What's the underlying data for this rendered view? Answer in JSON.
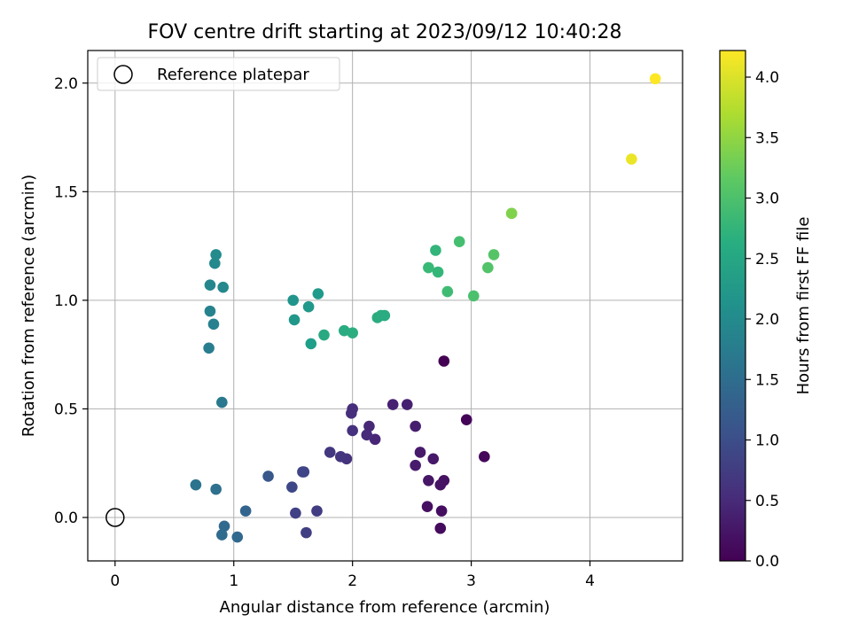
{
  "chart_data": {
    "type": "scatter",
    "title": "FOV centre drift starting at 2023/09/12 10:40:28",
    "xlabel": "Angular distance from reference (arcmin)",
    "ylabel": "Rotation from reference (arcmin)",
    "xlim": [
      -0.23,
      4.78
    ],
    "ylim": [
      -0.2,
      2.15
    ],
    "xticks": [
      0,
      1,
      2,
      3,
      4
    ],
    "xtick_labels": [
      "0",
      "1",
      "2",
      "3",
      "4"
    ],
    "yticks": [
      0.0,
      0.5,
      1.0,
      1.5,
      2.0
    ],
    "ytick_labels": [
      "0.0",
      "0.5",
      "1.0",
      "1.5",
      "2.0"
    ],
    "grid": true,
    "legend": {
      "position": "upper-left",
      "entries": [
        "Reference platepar"
      ]
    },
    "reference_point": {
      "x": 0.0,
      "y": 0.0
    },
    "colorbar": {
      "label": "Hours from first FF file",
      "range": [
        0.0,
        4.22
      ],
      "ticks": [
        0.0,
        0.5,
        1.0,
        1.5,
        2.0,
        2.5,
        3.0,
        3.5,
        4.0
      ],
      "tick_labels": [
        "0.0",
        "0.5",
        "1.0",
        "1.5",
        "2.0",
        "2.5",
        "3.0",
        "3.5",
        "4.0"
      ],
      "colormap": "viridis"
    },
    "points": [
      {
        "x": 2.77,
        "y": 0.72,
        "t": 0.0
      },
      {
        "x": 2.96,
        "y": 0.45,
        "t": 0.05
      },
      {
        "x": 3.11,
        "y": 0.28,
        "t": 0.08
      },
      {
        "x": 2.74,
        "y": -0.05,
        "t": 0.12
      },
      {
        "x": 2.75,
        "y": 0.03,
        "t": 0.15
      },
      {
        "x": 2.63,
        "y": 0.05,
        "t": 0.18
      },
      {
        "x": 2.77,
        "y": 0.17,
        "t": 0.2
      },
      {
        "x": 2.74,
        "y": 0.15,
        "t": 0.22
      },
      {
        "x": 2.64,
        "y": 0.17,
        "t": 0.25
      },
      {
        "x": 2.68,
        "y": 0.27,
        "t": 0.28
      },
      {
        "x": 2.57,
        "y": 0.3,
        "t": 0.3
      },
      {
        "x": 2.53,
        "y": 0.24,
        "t": 0.32
      },
      {
        "x": 2.53,
        "y": 0.42,
        "t": 0.35
      },
      {
        "x": 2.46,
        "y": 0.52,
        "t": 0.38
      },
      {
        "x": 2.34,
        "y": 0.52,
        "t": 0.4
      },
      {
        "x": 2.19,
        "y": 0.36,
        "t": 0.45
      },
      {
        "x": 2.14,
        "y": 0.42,
        "t": 0.48
      },
      {
        "x": 2.12,
        "y": 0.38,
        "t": 0.5
      },
      {
        "x": 2.0,
        "y": 0.5,
        "t": 0.55
      },
      {
        "x": 1.99,
        "y": 0.48,
        "t": 0.58
      },
      {
        "x": 2.0,
        "y": 0.4,
        "t": 0.6
      },
      {
        "x": 1.95,
        "y": 0.27,
        "t": 0.62
      },
      {
        "x": 1.9,
        "y": 0.28,
        "t": 0.65
      },
      {
        "x": 1.81,
        "y": 0.3,
        "t": 0.68
      },
      {
        "x": 1.7,
        "y": 0.03,
        "t": 0.75
      },
      {
        "x": 1.61,
        "y": -0.07,
        "t": 0.78
      },
      {
        "x": 1.52,
        "y": 0.02,
        "t": 0.82
      },
      {
        "x": 1.59,
        "y": 0.21,
        "t": 0.85
      },
      {
        "x": 1.58,
        "y": 0.21,
        "t": 0.88
      },
      {
        "x": 1.49,
        "y": 0.14,
        "t": 0.92
      },
      {
        "x": 1.29,
        "y": 0.19,
        "t": 1.15
      },
      {
        "x": 1.1,
        "y": 0.03,
        "t": 1.35
      },
      {
        "x": 1.03,
        "y": -0.09,
        "t": 1.4
      },
      {
        "x": 0.92,
        "y": -0.04,
        "t": 1.45
      },
      {
        "x": 0.9,
        "y": -0.08,
        "t": 1.47
      },
      {
        "x": 0.85,
        "y": 0.13,
        "t": 1.55
      },
      {
        "x": 0.68,
        "y": 0.15,
        "t": 1.6
      },
      {
        "x": 0.9,
        "y": 0.53,
        "t": 1.7
      },
      {
        "x": 0.79,
        "y": 0.78,
        "t": 1.8
      },
      {
        "x": 0.83,
        "y": 0.89,
        "t": 1.85
      },
      {
        "x": 0.8,
        "y": 0.95,
        "t": 1.9
      },
      {
        "x": 0.8,
        "y": 1.07,
        "t": 1.95
      },
      {
        "x": 0.91,
        "y": 1.06,
        "t": 1.97
      },
      {
        "x": 0.84,
        "y": 1.17,
        "t": 2.0
      },
      {
        "x": 0.85,
        "y": 1.21,
        "t": 2.02
      },
      {
        "x": 1.5,
        "y": 1.0,
        "t": 2.2
      },
      {
        "x": 1.51,
        "y": 0.91,
        "t": 2.22
      },
      {
        "x": 1.63,
        "y": 0.97,
        "t": 2.25
      },
      {
        "x": 1.71,
        "y": 1.03,
        "t": 2.28
      },
      {
        "x": 1.65,
        "y": 0.8,
        "t": 2.35
      },
      {
        "x": 1.76,
        "y": 0.84,
        "t": 2.55
      },
      {
        "x": 1.93,
        "y": 0.86,
        "t": 2.58
      },
      {
        "x": 2.0,
        "y": 0.85,
        "t": 2.62
      },
      {
        "x": 2.21,
        "y": 0.92,
        "t": 2.6
      },
      {
        "x": 2.24,
        "y": 0.93,
        "t": 2.62
      },
      {
        "x": 2.27,
        "y": 0.93,
        "t": 2.58
      },
      {
        "x": 2.64,
        "y": 1.15,
        "t": 2.85
      },
      {
        "x": 2.7,
        "y": 1.23,
        "t": 2.75
      },
      {
        "x": 2.72,
        "y": 1.13,
        "t": 2.8
      },
      {
        "x": 2.8,
        "y": 1.04,
        "t": 2.9
      },
      {
        "x": 2.9,
        "y": 1.27,
        "t": 2.95
      },
      {
        "x": 3.02,
        "y": 1.02,
        "t": 3.0
      },
      {
        "x": 3.14,
        "y": 1.15,
        "t": 3.05
      },
      {
        "x": 3.19,
        "y": 1.21,
        "t": 3.08
      },
      {
        "x": 3.34,
        "y": 1.4,
        "t": 3.45
      },
      {
        "x": 3.34,
        "y": 1.4,
        "t": 3.4
      },
      {
        "x": 4.35,
        "y": 1.65,
        "t": 4.1
      },
      {
        "x": 4.55,
        "y": 2.02,
        "t": 4.22
      }
    ]
  }
}
